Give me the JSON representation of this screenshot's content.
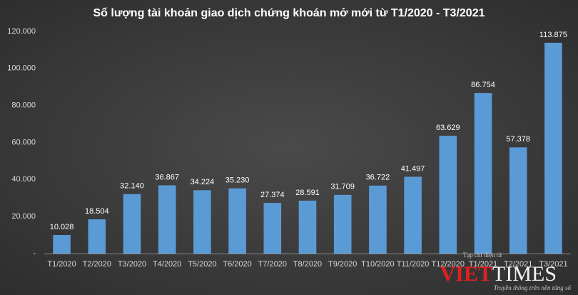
{
  "chart_data": {
    "type": "bar",
    "title": "Số lượng tài khoản giao dịch chứng khoán mở mới từ T1/2020 - T3/2021",
    "categories": [
      "T1/2020",
      "T2/2020",
      "T3/2020",
      "T4/2020",
      "T5/2020",
      "T6/2020",
      "T7/2020",
      "T8/2020",
      "T9/2020",
      "T10/2020",
      "T11/2020",
      "T12/2020",
      "T1/2021",
      "T2/2021",
      "T3/2021"
    ],
    "values": [
      10028,
      18504,
      32140,
      36867,
      34224,
      35230,
      27374,
      28591,
      31709,
      36722,
      41497,
      63629,
      86754,
      57378,
      113875
    ],
    "value_labels": [
      "10.028",
      "18.504",
      "32.140",
      "36.867",
      "34.224",
      "35.230",
      "27.374",
      "28.591",
      "31.709",
      "36.722",
      "41.497",
      "63.629",
      "86.754",
      "57.378",
      "113.875"
    ],
    "color": "#5b9bd5",
    "ylim": [
      0,
      120000
    ],
    "yticks": [
      {
        "value": 0,
        "label": "-"
      },
      {
        "value": 20000,
        "label": "20.000"
      },
      {
        "value": 40000,
        "label": "40.000"
      },
      {
        "value": 60000,
        "label": "60.000"
      },
      {
        "value": 80000,
        "label": "80.000"
      },
      {
        "value": 100000,
        "label": "100.000"
      },
      {
        "value": 120000,
        "label": "120.000"
      }
    ],
    "grid": false
  },
  "watermark": {
    "tagline_top": "Tạp chí điện tử",
    "brand_1": "VIET",
    "brand_2": "TIMES",
    "tagline_bottom": "Truyền thông trên nền tảng số"
  }
}
